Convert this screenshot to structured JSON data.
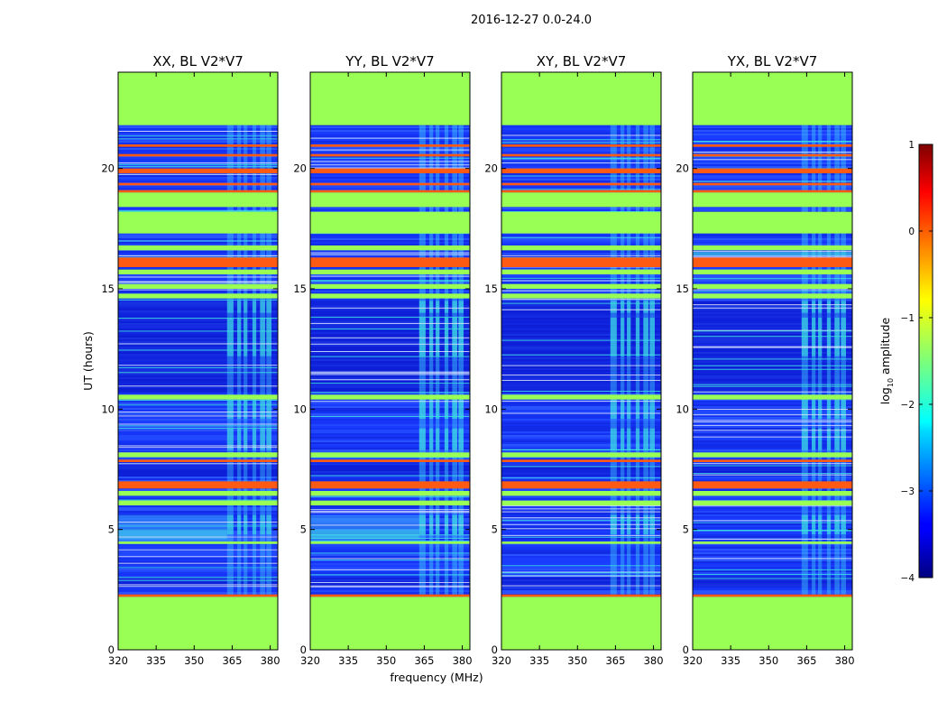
{
  "figure": {
    "suptitle": "2016-12-27 0.0-24.0",
    "xlabel": "frequency (MHz)",
    "ylabel": "UT (hours)"
  },
  "colorbar": {
    "label": "log10 amplitude",
    "label_base": "log",
    "label_sub": "10",
    "label_rest": " amplitude",
    "ticks": [
      {
        "value": 1,
        "label": "1"
      },
      {
        "value": 0,
        "label": "0"
      },
      {
        "value": -1,
        "label": "−1"
      },
      {
        "value": -2,
        "label": "−2"
      },
      {
        "value": -3,
        "label": "−3"
      },
      {
        "value": -4,
        "label": "−4"
      }
    ],
    "range": [
      -4,
      1
    ]
  },
  "colors": {
    "flag": "#99ff55",
    "background_noise": "#1a3cff",
    "deep": "#0a14c8",
    "bright_band": "#ff5a14",
    "cyan_band": "#3ee0e0",
    "white_line": "#dde6ff"
  },
  "chart_data": {
    "type": "heatmap",
    "x_ticks": [
      320,
      335,
      350,
      365,
      380
    ],
    "xlim": [
      320,
      383
    ],
    "y_ticks": [
      0,
      5,
      10,
      15,
      20
    ],
    "ylim": [
      0,
      24
    ],
    "panels": [
      {
        "title": "XX, BL V2*V7",
        "rfi_strength": 0.8,
        "low_excess": true
      },
      {
        "title": "YY, BL V2*V7",
        "rfi_strength": 1.0,
        "low_excess": true
      },
      {
        "title": "XY, BL V2*V7",
        "rfi_strength": 0.85,
        "low_excess": false
      },
      {
        "title": "YX, BL V2*V7",
        "rfi_strength": 0.9,
        "low_excess": false
      }
    ],
    "flagged_hours": [
      [
        0,
        2.2
      ],
      [
        17.3,
        18.2
      ],
      [
        18.4,
        19.0
      ],
      [
        21.8,
        24.0
      ]
    ],
    "bright_bands_hours": [
      [
        2.2,
        2.3
      ],
      [
        6.7,
        7.0
      ],
      [
        7.8,
        7.9
      ],
      [
        15.9,
        16.3
      ],
      [
        19.0,
        19.1
      ],
      [
        19.3,
        19.4
      ],
      [
        19.8,
        20.0
      ],
      [
        20.5,
        20.6
      ],
      [
        20.9,
        21.0
      ]
    ],
    "flag_bands_hours": [
      [
        4.4,
        4.5
      ],
      [
        6.0,
        6.2
      ],
      [
        6.4,
        6.6
      ],
      [
        8.0,
        8.2
      ],
      [
        10.4,
        10.6
      ],
      [
        14.6,
        14.8
      ],
      [
        15.0,
        15.2
      ],
      [
        15.6,
        15.8
      ],
      [
        16.6,
        16.8
      ]
    ],
    "rfi_channels_mhz": [
      [
        363,
        365.5
      ],
      [
        367,
        368.5
      ],
      [
        369.5,
        371
      ],
      [
        373,
        374.5
      ],
      [
        376,
        378
      ],
      [
        378.5,
        380.5
      ]
    ]
  }
}
